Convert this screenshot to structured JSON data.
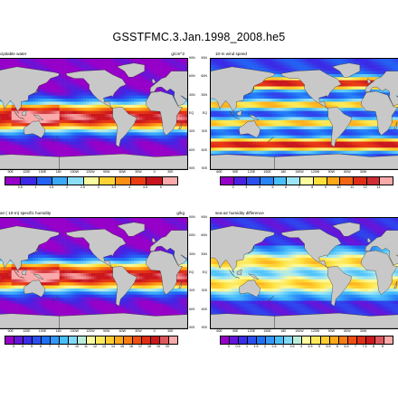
{
  "title": "GSSTFMC.3.Jan.1998_2008.he5",
  "lon_labels": [
    "90E",
    "120E",
    "150E",
    "180",
    "150W",
    "120W",
    "90W",
    "60W",
    "30W",
    "0",
    "30E"
  ],
  "lon_labels_right": [
    "60E",
    "90E",
    "120E",
    "150E",
    "180",
    "150W",
    "120W",
    "90W",
    "60W",
    "30W"
  ],
  "lat_labels": [
    "90N",
    "60N",
    "30N",
    "EQ",
    "30S",
    "60S",
    "90S"
  ],
  "colors": {
    "land": "#c8c8c8",
    "frame": "#000000"
  },
  "panels": [
    {
      "id": "precipitable-water",
      "label": "cipitable water",
      "units": "g/cm^2",
      "scale_ticks": [
        "0.5",
        "1",
        "1.5",
        "2",
        "2.5",
        "3",
        "3.5",
        "4",
        "4.5",
        "5"
      ],
      "field": "moisture"
    },
    {
      "id": "wind-speed",
      "label": "10-m wind speed",
      "units": "",
      "scale_ticks": [
        "2",
        "3",
        "4",
        "5",
        "6",
        "7",
        "8",
        "9",
        "10",
        "11",
        "12",
        "13"
      ],
      "field": "wind"
    },
    {
      "id": "specific-humidity",
      "label": "air ( 10-m) specific humidity",
      "units": "g/kg",
      "scale_ticks": [
        "3",
        "4",
        "5",
        "6",
        "7",
        "8",
        "9",
        "10",
        "11",
        "12",
        "13",
        "14",
        "15",
        "16",
        "17",
        "18",
        "19",
        "20"
      ],
      "field": "moisture"
    },
    {
      "id": "humidity-difference",
      "label": "sea-air humidity difference",
      "units": "",
      "scale_ticks": [
        "0",
        "0.5",
        "1",
        "1.5",
        "2",
        "2.5",
        "3",
        "3.5",
        "4",
        "4.5",
        "5",
        "5.5",
        "6",
        "6.5",
        "7",
        "7.5",
        "8",
        "8"
      ],
      "field": "difference"
    }
  ]
}
